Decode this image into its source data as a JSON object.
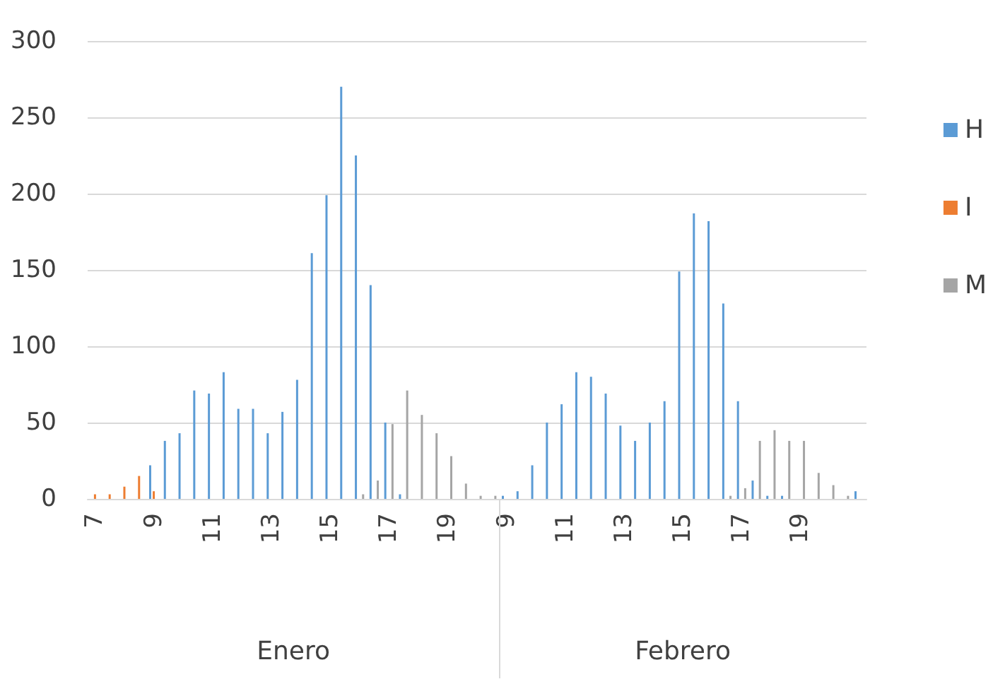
{
  "chart_data": {
    "type": "bar",
    "categories": [
      "7",
      null,
      null,
      null,
      "9",
      null,
      null,
      null,
      "11",
      null,
      null,
      null,
      "13",
      null,
      null,
      null,
      "15",
      null,
      null,
      null,
      "17",
      null,
      null,
      null,
      "19",
      null,
      null,
      null,
      "9",
      null,
      null,
      null,
      "11",
      null,
      null,
      null,
      "13",
      null,
      null,
      null,
      "15",
      null,
      null,
      null,
      "17",
      null,
      null,
      null,
      "19",
      null,
      null,
      null,
      null
    ],
    "series": [
      {
        "name": "H",
        "color": "#5b9bd5",
        "values": [
          null,
          null,
          null,
          null,
          22,
          38,
          43,
          71,
          69,
          83,
          59,
          59,
          43,
          57,
          78,
          161,
          199,
          270,
          225,
          140,
          50,
          3,
          null,
          null,
          null,
          null,
          null,
          null,
          2,
          5,
          22,
          50,
          62,
          83,
          80,
          69,
          48,
          38,
          50,
          64,
          149,
          187,
          182,
          128,
          64,
          12,
          2,
          2,
          null,
          null,
          null,
          null,
          5
        ]
      },
      {
        "name": "I",
        "color": "#ed7d31",
        "values": [
          3,
          3,
          8,
          15,
          5,
          null,
          null,
          null,
          null,
          null,
          null,
          null,
          null,
          null,
          null,
          null,
          null,
          null,
          null,
          null,
          null,
          null,
          null,
          null,
          null,
          null,
          null,
          null,
          null,
          null,
          null,
          null,
          null,
          null,
          null,
          null,
          null,
          null,
          null,
          null,
          null,
          null,
          null,
          null,
          null,
          null,
          null,
          null,
          null,
          null,
          null,
          null,
          null
        ]
      },
      {
        "name": "M",
        "color": "#a5a5a5",
        "values": [
          null,
          null,
          null,
          null,
          null,
          null,
          null,
          null,
          null,
          null,
          null,
          null,
          null,
          null,
          null,
          null,
          null,
          null,
          3,
          12,
          49,
          71,
          55,
          43,
          28,
          10,
          2,
          2,
          null,
          null,
          null,
          null,
          null,
          null,
          null,
          null,
          null,
          null,
          null,
          null,
          null,
          null,
          null,
          2,
          7,
          38,
          45,
          38,
          38,
          17,
          9,
          2,
          null
        ]
      }
    ],
    "ylim": [
      0,
      300
    ],
    "yticks": [
      0,
      50,
      100,
      150,
      200,
      250,
      300
    ],
    "grid": "y",
    "legend": "right",
    "annotations": [
      "Enero",
      "Febrero"
    ]
  }
}
